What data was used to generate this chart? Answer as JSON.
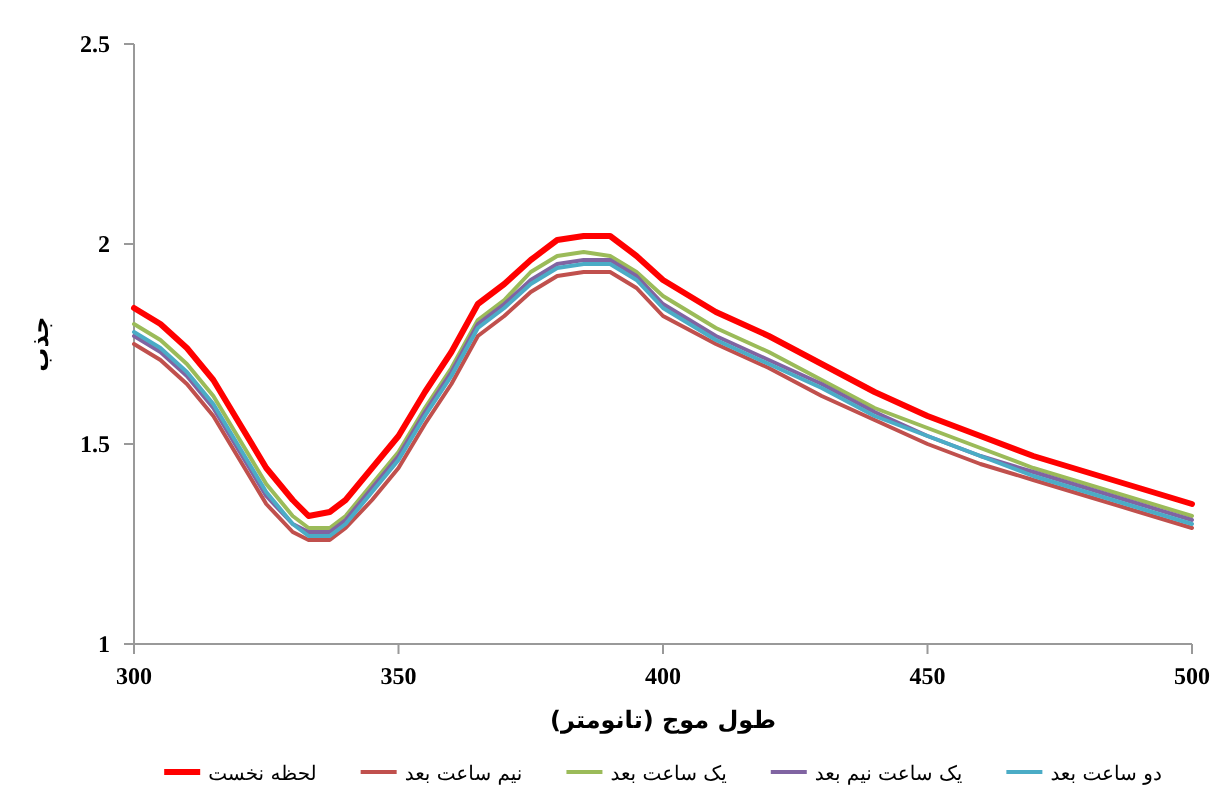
{
  "chart_data": {
    "type": "line",
    "xlabel": "طول موج (تانومتر)",
    "ylabel": "جذب",
    "x": [
      300,
      305,
      310,
      315,
      320,
      325,
      330,
      333,
      337,
      340,
      345,
      350,
      355,
      360,
      365,
      370,
      375,
      380,
      385,
      390,
      395,
      400,
      410,
      420,
      430,
      440,
      450,
      460,
      470,
      480,
      490,
      500
    ],
    "series": [
      {
        "name": "لحظه نخست",
        "color": "#ff0000",
        "values": [
          1.84,
          1.8,
          1.74,
          1.66,
          1.55,
          1.44,
          1.36,
          1.32,
          1.33,
          1.36,
          1.44,
          1.52,
          1.63,
          1.73,
          1.85,
          1.9,
          1.96,
          2.01,
          2.02,
          2.02,
          1.97,
          1.91,
          1.83,
          1.77,
          1.7,
          1.63,
          1.57,
          1.52,
          1.47,
          1.43,
          1.39,
          1.35
        ]
      },
      {
        "name": "نیم ساعت بعد",
        "color": "#c0504d",
        "values": [
          1.75,
          1.71,
          1.65,
          1.57,
          1.46,
          1.35,
          1.28,
          1.26,
          1.26,
          1.29,
          1.36,
          1.44,
          1.55,
          1.65,
          1.77,
          1.82,
          1.88,
          1.92,
          1.93,
          1.93,
          1.89,
          1.82,
          1.75,
          1.69,
          1.62,
          1.56,
          1.5,
          1.45,
          1.41,
          1.37,
          1.33,
          1.29
        ]
      },
      {
        "name": "یک ساعت بعد",
        "color": "#9bbb59",
        "values": [
          1.8,
          1.76,
          1.7,
          1.62,
          1.51,
          1.4,
          1.32,
          1.29,
          1.29,
          1.32,
          1.4,
          1.48,
          1.59,
          1.69,
          1.81,
          1.86,
          1.93,
          1.97,
          1.98,
          1.97,
          1.93,
          1.87,
          1.79,
          1.73,
          1.66,
          1.59,
          1.54,
          1.49,
          1.44,
          1.4,
          1.36,
          1.32
        ]
      },
      {
        "name": "یک ساعت نیم بعد",
        "color": "#8064a2",
        "values": [
          1.77,
          1.73,
          1.67,
          1.59,
          1.48,
          1.37,
          1.3,
          1.28,
          1.28,
          1.31,
          1.39,
          1.47,
          1.58,
          1.68,
          1.8,
          1.85,
          1.91,
          1.95,
          1.96,
          1.96,
          1.92,
          1.85,
          1.77,
          1.71,
          1.65,
          1.58,
          1.52,
          1.47,
          1.43,
          1.39,
          1.35,
          1.31
        ]
      },
      {
        "name": "دو ساعت بعد",
        "color": "#4bacc6",
        "values": [
          1.78,
          1.74,
          1.68,
          1.6,
          1.49,
          1.38,
          1.3,
          1.27,
          1.27,
          1.3,
          1.38,
          1.46,
          1.57,
          1.67,
          1.79,
          1.84,
          1.9,
          1.94,
          1.95,
          1.95,
          1.91,
          1.84,
          1.76,
          1.7,
          1.64,
          1.57,
          1.52,
          1.47,
          1.42,
          1.38,
          1.34,
          1.3
        ]
      }
    ],
    "xlim": [
      300,
      500
    ],
    "ylim": [
      1,
      2.5
    ],
    "xticks": [
      300,
      350,
      400,
      450,
      500
    ],
    "yticks": [
      1,
      1.5,
      2,
      2.5
    ],
    "legend": "bottom"
  }
}
